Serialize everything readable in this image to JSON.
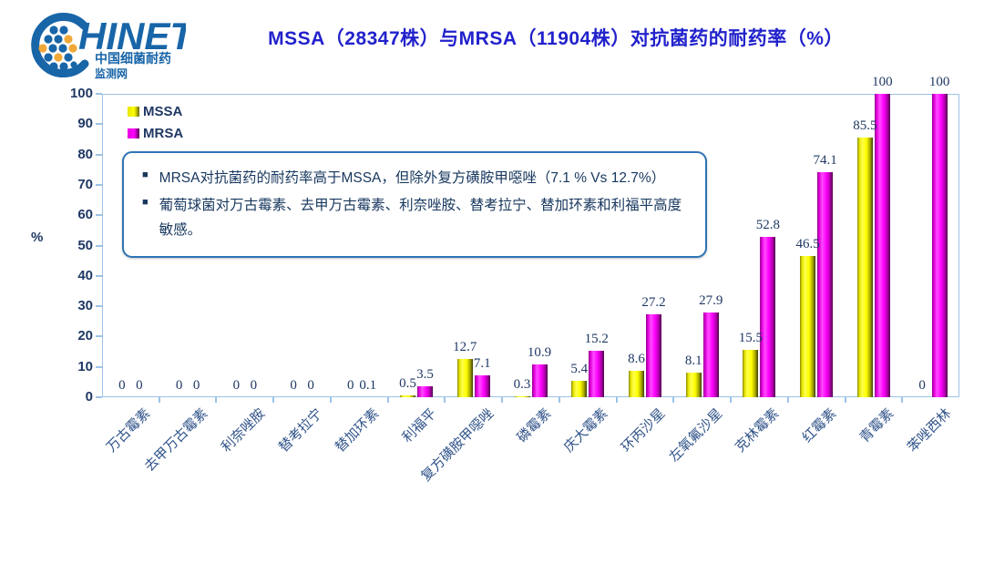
{
  "logo": {
    "brand": "HINET",
    "subtitle1": "中国细菌耐药",
    "subtitle2": "监测网"
  },
  "title": "MSSA（28347株）与MRSA（11904株）对抗菌药的耐药率（%）",
  "legend": {
    "items": [
      {
        "label": "MSSA",
        "series": "mssa"
      },
      {
        "label": "MRSA",
        "series": "mrsa"
      }
    ]
  },
  "annotation": {
    "bullets": [
      "MRSA对抗菌药的耐药率高于MSSA，但除外复方磺胺甲噁唑（7.1 % Vs 12.7%）",
      "葡萄球菌对万古霉素、去甲万古霉素、利奈唑胺、替考拉宁、替加环素和利福平高度敏感。"
    ]
  },
  "axis": {
    "y_unit_label": "%",
    "yticks": [
      0,
      10,
      20,
      30,
      40,
      50,
      60,
      70,
      80,
      90,
      100
    ]
  },
  "chart_data": {
    "type": "bar",
    "title": "MSSA（28347株）与MRSA（11904株）对抗菌药的耐药率（%）",
    "xlabel": "",
    "ylabel": "%",
    "ylim": [
      0,
      100
    ],
    "grid": false,
    "legend_position": "upper-left-inside",
    "categories": [
      "万古霉素",
      "去甲万古霉素",
      "利奈唑胺",
      "替考拉宁",
      "替加环素",
      "利福平",
      "复方磺胺甲噁唑",
      "磷霉素",
      "庆大霉素",
      "环丙沙星",
      "左氧氟沙星",
      "克林霉素",
      "红霉素",
      "青霉素",
      "苯唑西林"
    ],
    "series": [
      {
        "name": "MSSA",
        "color": "#FFFF00",
        "values": [
          0,
          0,
          0,
          0,
          0,
          0.5,
          12.7,
          0.3,
          5.4,
          8.6,
          8.1,
          15.5,
          46.5,
          85.5,
          0
        ]
      },
      {
        "name": "MRSA",
        "color": "#FF00FF",
        "values": [
          0,
          0,
          0,
          0,
          0.1,
          3.5,
          7.1,
          10.9,
          15.2,
          27.2,
          27.9,
          52.8,
          74.1,
          100,
          100
        ]
      }
    ]
  },
  "colors": {
    "title": "#2222CC",
    "axis_line": "#9DC3E6",
    "tick_label": "#1F3864",
    "data_label": "#1F3864",
    "x_label": "#31548A",
    "annotation_border": "#2E74B5",
    "annotation_text": "#17375E",
    "mssa_bar": "#FFFF00",
    "mrsa_bar": "#FF00FF"
  }
}
